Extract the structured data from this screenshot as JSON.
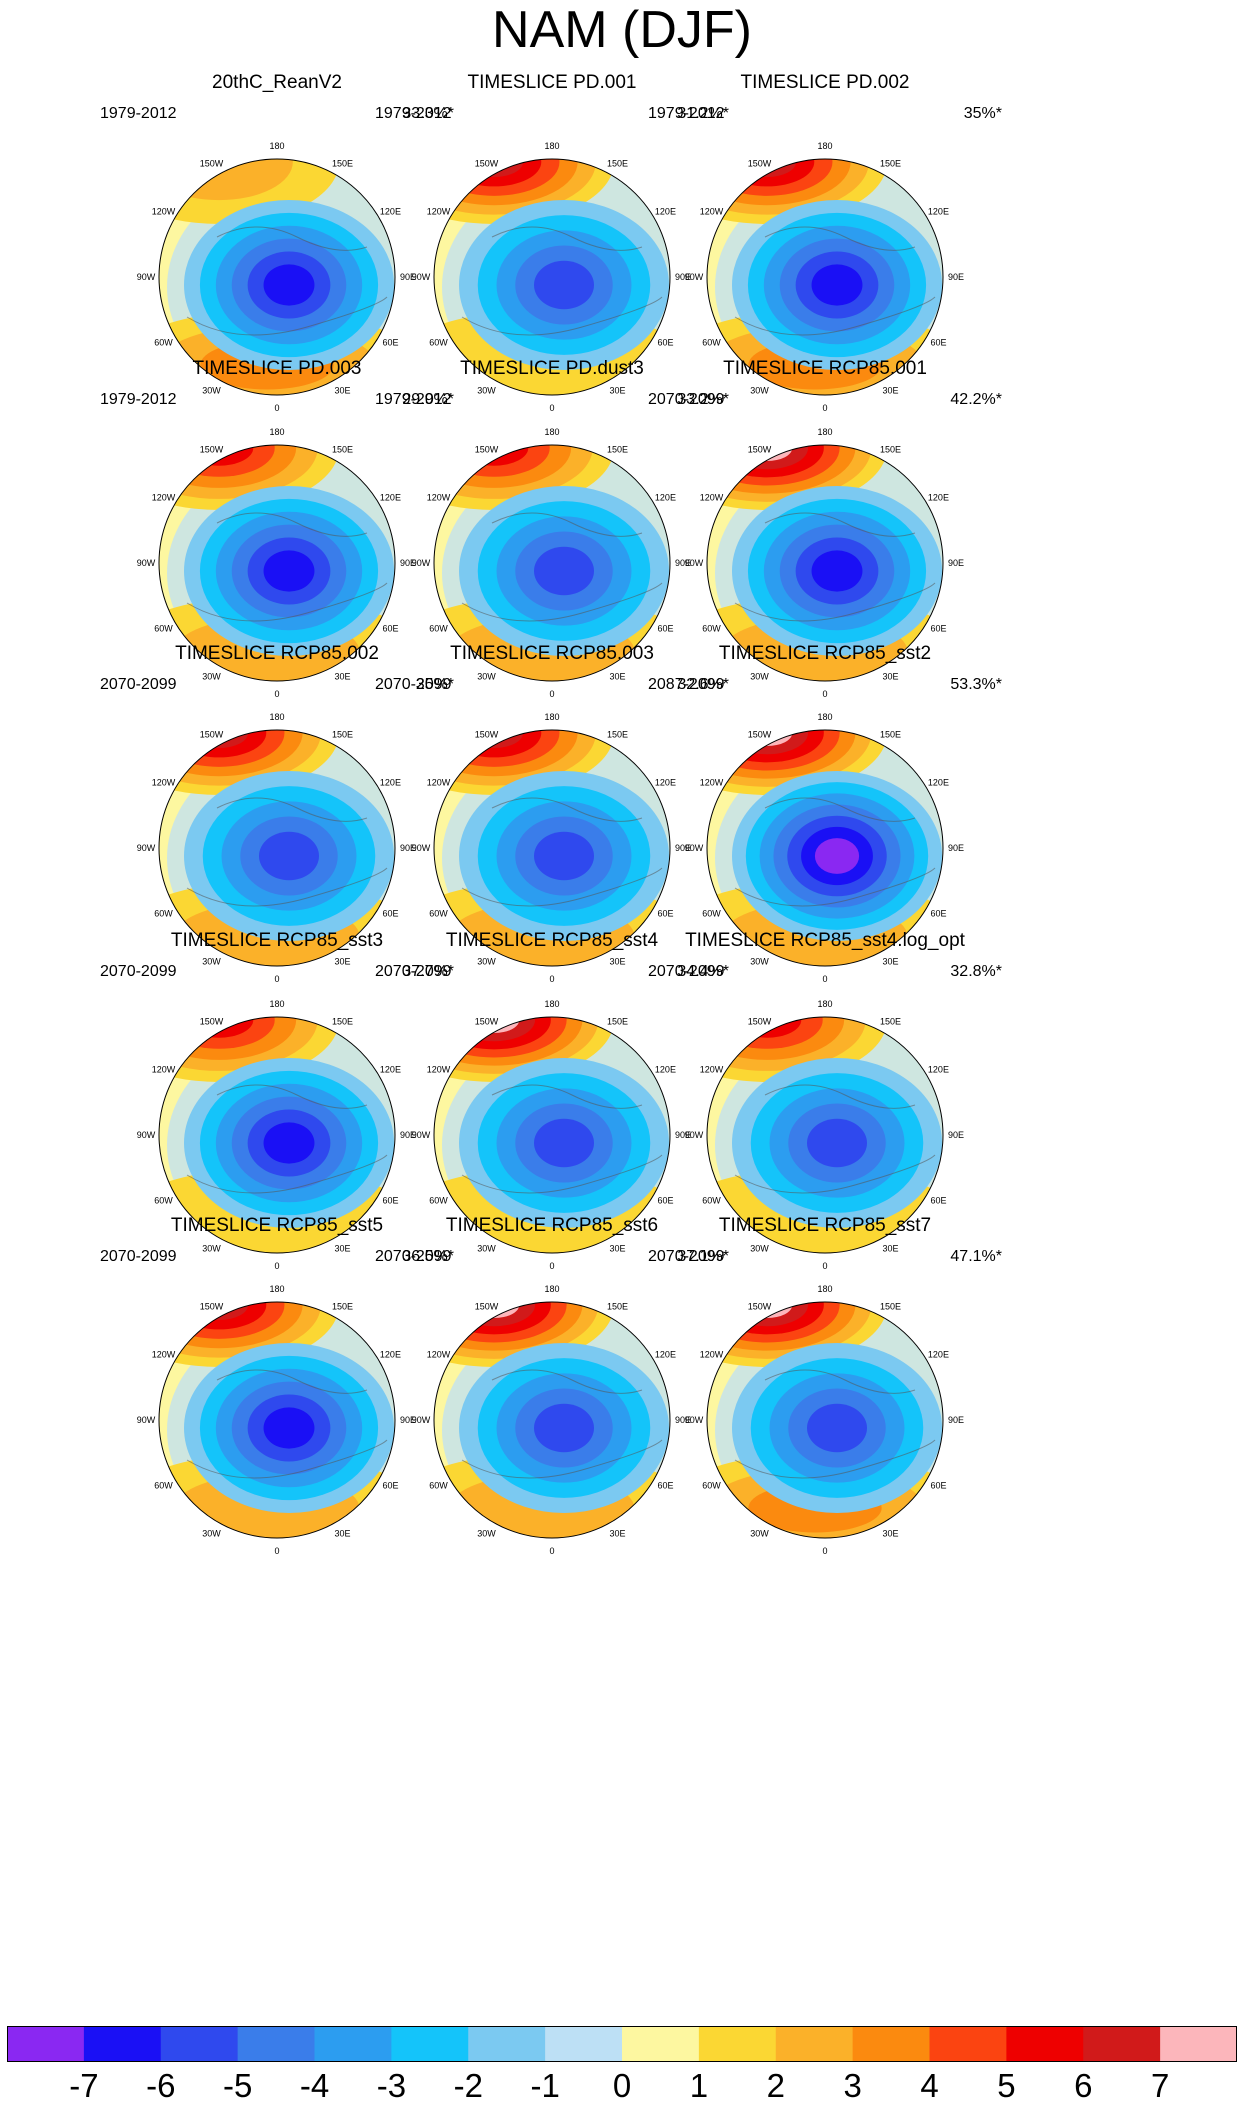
{
  "title": "NAM (DJF)",
  "chart_data": {
    "type": "heatmap",
    "projection": "north polar stereographic",
    "longitude_labels": [
      "180",
      "150E",
      "120E",
      "90E",
      "60E",
      "30E",
      "0",
      "30W",
      "60W",
      "90W",
      "120W",
      "150W"
    ],
    "colorbar": {
      "tick_labels": [
        "-7",
        "-6",
        "-5",
        "-4",
        "-3",
        "-2",
        "-1",
        "0",
        "1",
        "2",
        "3",
        "4",
        "5",
        "6",
        "7"
      ],
      "colors": [
        "#8a28f2",
        "#1a10f5",
        "#2f49ee",
        "#3a7dea",
        "#2c9df0",
        "#14c4fa",
        "#7bc9f1",
        "#bde0f5",
        "#fdf7a0",
        "#fbd733",
        "#fbb129",
        "#fb8a0f",
        "#fb4411",
        "#ee0000",
        "#d11a1a",
        "#fcb6bb"
      ]
    },
    "panels": [
      {
        "title": "20thC_ReanV2",
        "period": "1979-2012",
        "variance": "33.3%*",
        "pacific_max": 2,
        "atlantic_max": 3,
        "arctic_min": -6
      },
      {
        "title": "TIMESLICE PD.001",
        "period": "1979-2012",
        "variance": "31.2%*",
        "pacific_max": 6,
        "atlantic_max": 1,
        "arctic_min": -5
      },
      {
        "title": "TIMESLICE PD.002",
        "period": "1979-2012",
        "variance": "35%*",
        "pacific_max": 6,
        "atlantic_max": 3,
        "arctic_min": -6
      },
      {
        "title": "TIMESLICE PD.003",
        "period": "1979-2012",
        "variance": "29.9%*",
        "pacific_max": 5,
        "atlantic_max": 2,
        "arctic_min": -6
      },
      {
        "title": "TIMESLICE PD.dust3",
        "period": "1979-2012",
        "variance": "33.2%*",
        "pacific_max": 5,
        "atlantic_max": 2,
        "arctic_min": -5
      },
      {
        "title": "TIMESLICE RCP85.001",
        "period": "2070-2099",
        "variance": "42.2%*",
        "pacific_max": 7,
        "atlantic_max": 2,
        "arctic_min": -6
      },
      {
        "title": "TIMESLICE RCP85.002",
        "period": "2070-2099",
        "variance": "35%*",
        "pacific_max": 6,
        "atlantic_max": 2,
        "arctic_min": -5
      },
      {
        "title": "TIMESLICE RCP85.003",
        "period": "2070-2099",
        "variance": "32.6%*",
        "pacific_max": 6,
        "atlantic_max": 2,
        "arctic_min": -5
      },
      {
        "title": "TIMESLICE RCP85_sst2",
        "period": "2087-2099",
        "variance": "53.3%*",
        "pacific_max": 7,
        "atlantic_max": 2,
        "arctic_min": -7
      },
      {
        "title": "TIMESLICE RCP85_sst3",
        "period": "2070-2099",
        "variance": "37.7%*",
        "pacific_max": 5,
        "atlantic_max": 1,
        "arctic_min": -6
      },
      {
        "title": "TIMESLICE RCP85_sst4",
        "period": "2070-2099",
        "variance": "34.4%*",
        "pacific_max": 7,
        "atlantic_max": 1,
        "arctic_min": -5
      },
      {
        "title": "TIMESLICE RCP85_sst4.log_opt",
        "period": "2070-2099",
        "variance": "32.8%*",
        "pacific_max": 5,
        "atlantic_max": 1,
        "arctic_min": -5
      },
      {
        "title": "TIMESLICE RCP85_sst5",
        "period": "2070-2099",
        "variance": "36.5%*",
        "pacific_max": 6,
        "atlantic_max": 2,
        "arctic_min": -6
      },
      {
        "title": "TIMESLICE RCP85_sst6",
        "period": "2070-2099",
        "variance": "37.1%*",
        "pacific_max": 7,
        "atlantic_max": 2,
        "arctic_min": -5
      },
      {
        "title": "TIMESLICE RCP85_sst7",
        "period": "2070-2099",
        "variance": "47.1%*",
        "pacific_max": 7,
        "atlantic_max": 3,
        "arctic_min": -5
      }
    ]
  }
}
